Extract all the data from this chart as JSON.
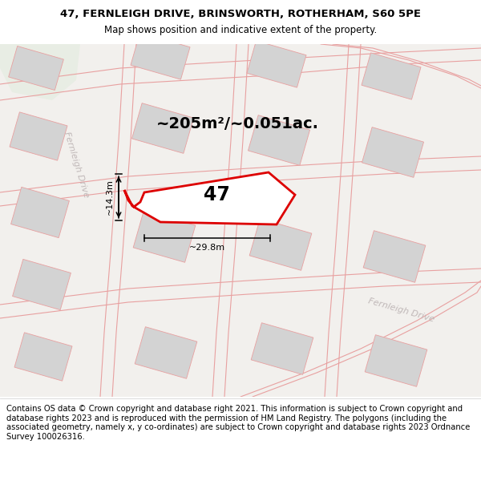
{
  "title_line1": "47, FERNLEIGH DRIVE, BRINSWORTH, ROTHERHAM, S60 5PE",
  "title_line2": "Map shows position and indicative extent of the property.",
  "area_text": "~205m²/~0.051ac.",
  "label_47": "47",
  "dim_width": "~29.8m",
  "dim_height": "~14.3m",
  "street_label1": "Fernleigh Drive",
  "street_label2": "Fernleigh Drive",
  "footer_text": "Contains OS data © Crown copyright and database right 2021. This information is subject to Crown copyright and database rights 2023 and is reproduced with the permission of HM Land Registry. The polygons (including the associated geometry, namely x, y co-ordinates) are subject to Crown copyright and database rights 2023 Ordnance Survey 100026316.",
  "map_bg": "#f2f0ed",
  "building_color": "#d3d3d3",
  "building_ec": "#e8a0a0",
  "road_line_color": "#e8a0a0",
  "plot_outline_color": "#dd0000",
  "plot_fill_color": "#ffffff",
  "green_color": "#e8ede4",
  "dim_line_color": "#000000",
  "street_text_color": "#c0b8b8",
  "title_fontsize": 9.5,
  "subtitle_fontsize": 8.5,
  "area_fontsize": 14,
  "label_fontsize": 17,
  "footer_fontsize": 7.2,
  "road_lw": 0.8,
  "bldg_lw": 0.6
}
